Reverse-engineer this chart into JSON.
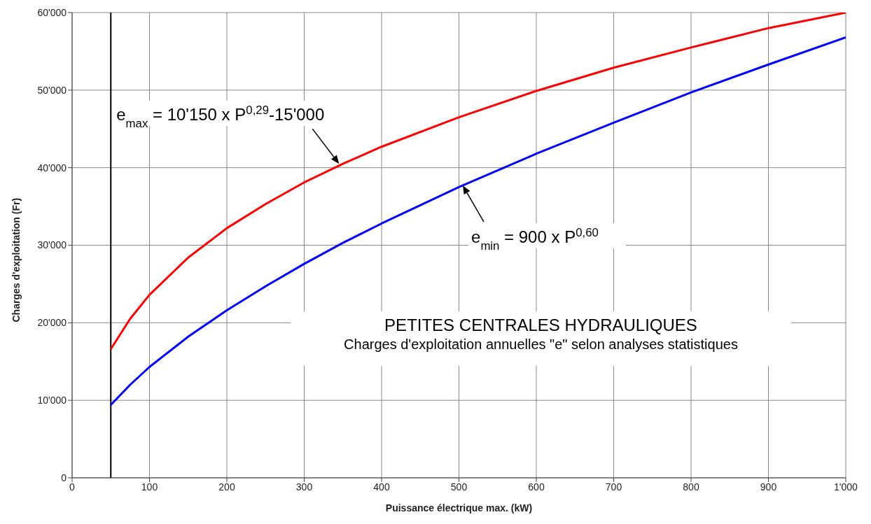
{
  "chart_data": {
    "type": "line",
    "title": "PETITES CENTRALES HYDRAULIQUES",
    "subtitle": "Charges d'exploitation annuelles \"e\" selon analyses statistiques",
    "xlabel": "Puissance électrique max. (kW)",
    "ylabel": "Charges d'exploitation (Fr)",
    "x": [
      50,
      75,
      100,
      150,
      200,
      250,
      300,
      350,
      400,
      500,
      600,
      700,
      800,
      900,
      1000
    ],
    "series": [
      {
        "color": "#ff0000",
        "values": [
          16600,
          20500,
          23600,
          28400,
          32200,
          35300,
          38100,
          40500,
          42700,
          46500,
          49900,
          52900,
          55500,
          58000,
          60000
        ]
      },
      {
        "color": "#0000ff",
        "values": [
          9400,
          12000,
          14300,
          18200,
          21600,
          24700,
          27600,
          30300,
          32800,
          37500,
          41800,
          45800,
          49700,
          53300,
          56800
        ]
      }
    ],
    "xlim": [
      0,
      1000
    ],
    "xticks": [
      0,
      100,
      200,
      300,
      400,
      500,
      600,
      700,
      800,
      900,
      {
        "value": 1000,
        "label": "1'000"
      }
    ],
    "ylim": [
      0,
      60000
    ],
    "yticks": [
      0,
      {
        "value": 10000,
        "label": "10'000"
      },
      {
        "value": 20000,
        "label": "20'000"
      },
      {
        "value": 30000,
        "label": "30'000"
      },
      {
        "value": 40000,
        "label": "40'000"
      },
      {
        "value": 50000,
        "label": "50'000"
      },
      {
        "value": 60000,
        "label": "60'000"
      }
    ],
    "grid": true,
    "marker": "none",
    "line_style": "solid",
    "ref_lines": [
      {
        "axis": "x",
        "value": 50,
        "color": "#000000"
      }
    ],
    "annotations": [
      {
        "text": "e$_{max}$ = 10'150 x P$^{0,29}$-15'000",
        "x": 345,
        "y": 40500
      },
      {
        "text": "e$_{min}$ = 900 x P$^{0,60}$",
        "x": 505,
        "y": 37700
      }
    ]
  }
}
